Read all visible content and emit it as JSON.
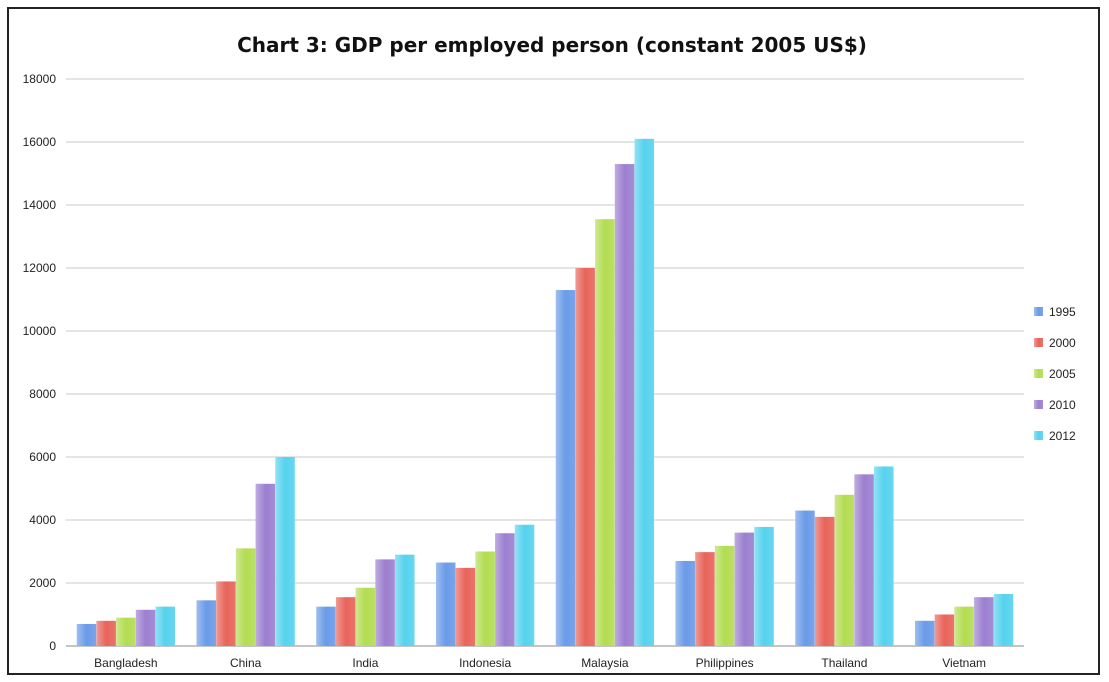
{
  "chart_data": {
    "type": "bar",
    "title": "Chart 3: GDP per employed person (constant 2005 US$)",
    "xlabel": "",
    "ylabel": "",
    "ylim": [
      0,
      18000
    ],
    "yticks": [
      0,
      2000,
      4000,
      6000,
      8000,
      10000,
      12000,
      14000,
      16000,
      18000
    ],
    "grid": true,
    "legend_position": "right",
    "categories": [
      "Bangladesh",
      "China",
      "India",
      "Indonesia",
      "Malaysia",
      "Philippines",
      "Thailand",
      "Vietnam"
    ],
    "series": [
      {
        "name": "1995",
        "color": "#6a9be8",
        "values": [
          700,
          1450,
          1250,
          2650,
          11300,
          2700,
          4300,
          800
        ]
      },
      {
        "name": "2000",
        "color": "#e8645a",
        "values": [
          800,
          2050,
          1550,
          2480,
          12000,
          2980,
          4100,
          1000
        ]
      },
      {
        "name": "2005",
        "color": "#b3dc52",
        "values": [
          900,
          3100,
          1850,
          3000,
          13550,
          3180,
          4800,
          1250
        ]
      },
      {
        "name": "2010",
        "color": "#9c7fd0",
        "values": [
          1150,
          5150,
          2750,
          3580,
          15300,
          3600,
          5450,
          1550
        ]
      },
      {
        "name": "2012",
        "color": "#56d2ee",
        "values": [
          1250,
          6000,
          2900,
          3850,
          16100,
          3780,
          5700,
          1650
        ]
      }
    ]
  }
}
